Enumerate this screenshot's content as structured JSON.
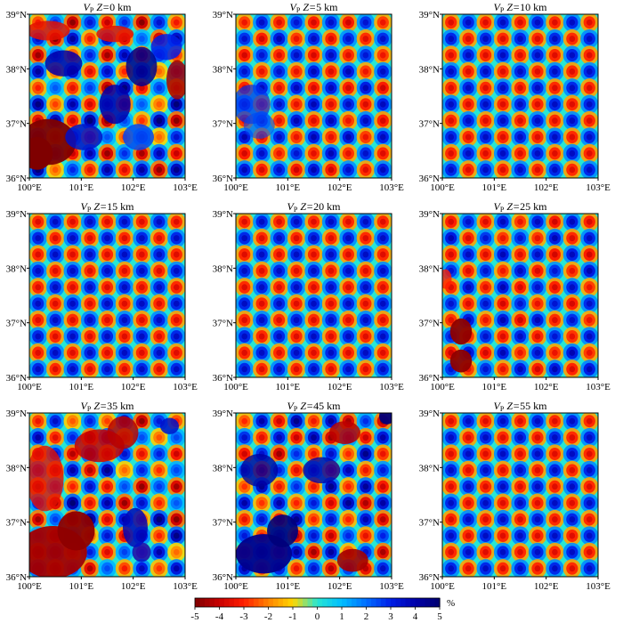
{
  "figure": {
    "colorbar": {
      "ticks": [
        "-5",
        "-4",
        "-3",
        "-2",
        "-1",
        "0",
        "1",
        "2",
        "3",
        "4",
        "5"
      ],
      "unit": "%",
      "range": [
        -5,
        5
      ],
      "colors": [
        "#7f0000",
        "#cc0000",
        "#ff2a00",
        "#ff8000",
        "#ffd400",
        "#00ffff",
        "#00b4ff",
        "#0050ff",
        "#0000c8",
        "#00007f"
      ]
    },
    "axes": {
      "lon_ticks": [
        "100°E",
        "101°E",
        "102°E",
        "103°E"
      ],
      "lat_ticks": [
        "39°N",
        "38°N",
        "37°N",
        "36°N"
      ],
      "lon_range": [
        100,
        103
      ],
      "lat_range": [
        36,
        39
      ]
    },
    "panels": [
      {
        "depth": "0",
        "pattern": "distorted"
      },
      {
        "depth": "5",
        "pattern": "mostly-recovered"
      },
      {
        "depth": "10",
        "pattern": "recovered"
      },
      {
        "depth": "15",
        "pattern": "recovered"
      },
      {
        "depth": "20",
        "pattern": "recovered"
      },
      {
        "depth": "25",
        "pattern": "mostly-recovered"
      },
      {
        "depth": "35",
        "pattern": "distorted"
      },
      {
        "depth": "45",
        "pattern": "partly-distorted"
      },
      {
        "depth": "55",
        "pattern": "recovered"
      }
    ],
    "title_prefix": "V",
    "title_sub": "P",
    "title_mid": " Z=",
    "title_suffix": " km"
  }
}
